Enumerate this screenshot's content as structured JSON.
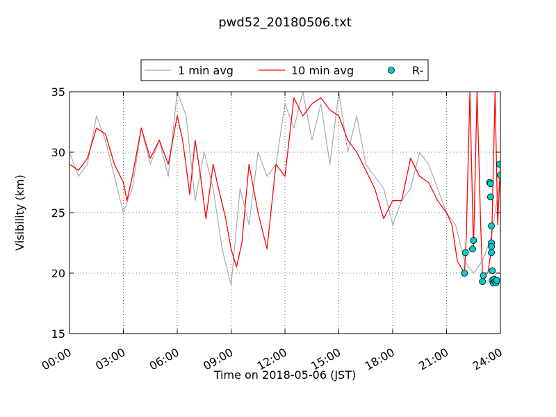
{
  "chart_data": {
    "type": "line",
    "title": "pwd52_20180506.txt",
    "xlabel": "Time on 2018-05-06 (JST)",
    "ylabel": "Visibility (km)",
    "xlim": [
      0,
      24
    ],
    "ylim": [
      15,
      35
    ],
    "x_ticks": [
      0,
      3,
      6,
      9,
      12,
      15,
      18,
      21,
      24
    ],
    "x_tick_labels": [
      "00:00",
      "03:00",
      "06:00",
      "09:00",
      "12:00",
      "15:00",
      "18:00",
      "21:00",
      "24:00"
    ],
    "y_ticks": [
      15,
      20,
      25,
      30,
      35
    ],
    "y_tick_labels": [
      "15",
      "20",
      "25",
      "30",
      "35"
    ],
    "grid": true,
    "legend_position": "top-center",
    "series": [
      {
        "name": "1 min avg",
        "kind": "line",
        "color": "#aaaaaa",
        "x": [
          0,
          0.5,
          1,
          1.5,
          2,
          2.5,
          3,
          3.5,
          4,
          4.5,
          5,
          5.5,
          6,
          6.5,
          7,
          7.5,
          8,
          8.5,
          9,
          9.5,
          10,
          10.5,
          11,
          11.5,
          12,
          12.5,
          13,
          13.5,
          14,
          14.5,
          15,
          15.5,
          16,
          16.5,
          17,
          17.5,
          18,
          18.5,
          19,
          19.5,
          20,
          20.5,
          21,
          21.5,
          22,
          22.5,
          23,
          23.5,
          24
        ],
        "values": [
          30,
          28,
          29,
          33,
          31,
          28,
          25,
          27,
          32,
          29,
          31,
          28,
          35,
          33,
          26,
          30,
          27,
          22,
          19,
          27,
          24,
          30,
          28,
          29,
          34,
          32,
          35,
          31,
          34,
          29,
          35,
          30,
          33,
          29,
          28,
          27,
          24,
          26,
          27,
          30,
          29,
          27,
          25,
          24,
          21,
          20,
          21,
          23,
          28
        ]
      },
      {
        "name": "10 min avg",
        "kind": "line",
        "color": "#ff0000",
        "x": [
          0,
          0.5,
          1,
          1.5,
          2,
          2.5,
          3,
          3.2,
          3.5,
          4,
          4.5,
          5,
          5.5,
          6,
          6.3,
          6.7,
          7,
          7.3,
          7.6,
          8,
          8.3,
          8.7,
          9,
          9.3,
          9.6,
          10,
          10.5,
          11,
          11.5,
          12,
          12.5,
          13,
          13.5,
          14,
          14.5,
          15,
          15.5,
          16,
          16.5,
          17,
          17.5,
          18,
          18.5,
          19,
          19.5,
          20,
          20.5,
          21,
          21.3,
          21.6,
          22,
          22.1,
          22.3,
          22.5,
          22.7,
          22.9,
          23,
          23.3,
          23.5,
          23.7,
          23.85,
          24
        ],
        "values": [
          29,
          28.5,
          29.5,
          32,
          31.5,
          29,
          27.5,
          26,
          28,
          32,
          29.5,
          31,
          29,
          33,
          31,
          26.5,
          31,
          28,
          24.5,
          29,
          27,
          24.5,
          22,
          20.5,
          22.5,
          29,
          25,
          22,
          29,
          28,
          34.5,
          33,
          34,
          34.5,
          33.5,
          33,
          31,
          30,
          28.5,
          27,
          24.5,
          26,
          26,
          29.5,
          28,
          27.5,
          26,
          25,
          24,
          21,
          20,
          23,
          35,
          22,
          35,
          24,
          20,
          20,
          22,
          35,
          24,
          29
        ]
      },
      {
        "name": "R-",
        "kind": "scatter",
        "color": "#00cccc",
        "x": [
          22.0,
          22.05,
          22.45,
          22.5,
          23.0,
          23.05,
          23.4,
          23.45,
          23.45,
          23.5,
          23.5,
          23.5,
          23.5,
          23.55,
          23.55,
          23.6,
          23.65,
          23.7,
          23.75,
          23.8,
          23.95,
          24.0
        ],
        "values": [
          20.0,
          21.7,
          22.0,
          22.7,
          19.3,
          19.8,
          27.5,
          27.4,
          26.3,
          23.9,
          22.5,
          22.2,
          21.7,
          20.2,
          19.4,
          19.2,
          19.5,
          19.3,
          19.2,
          19.4,
          29.0,
          28.1
        ]
      }
    ]
  }
}
